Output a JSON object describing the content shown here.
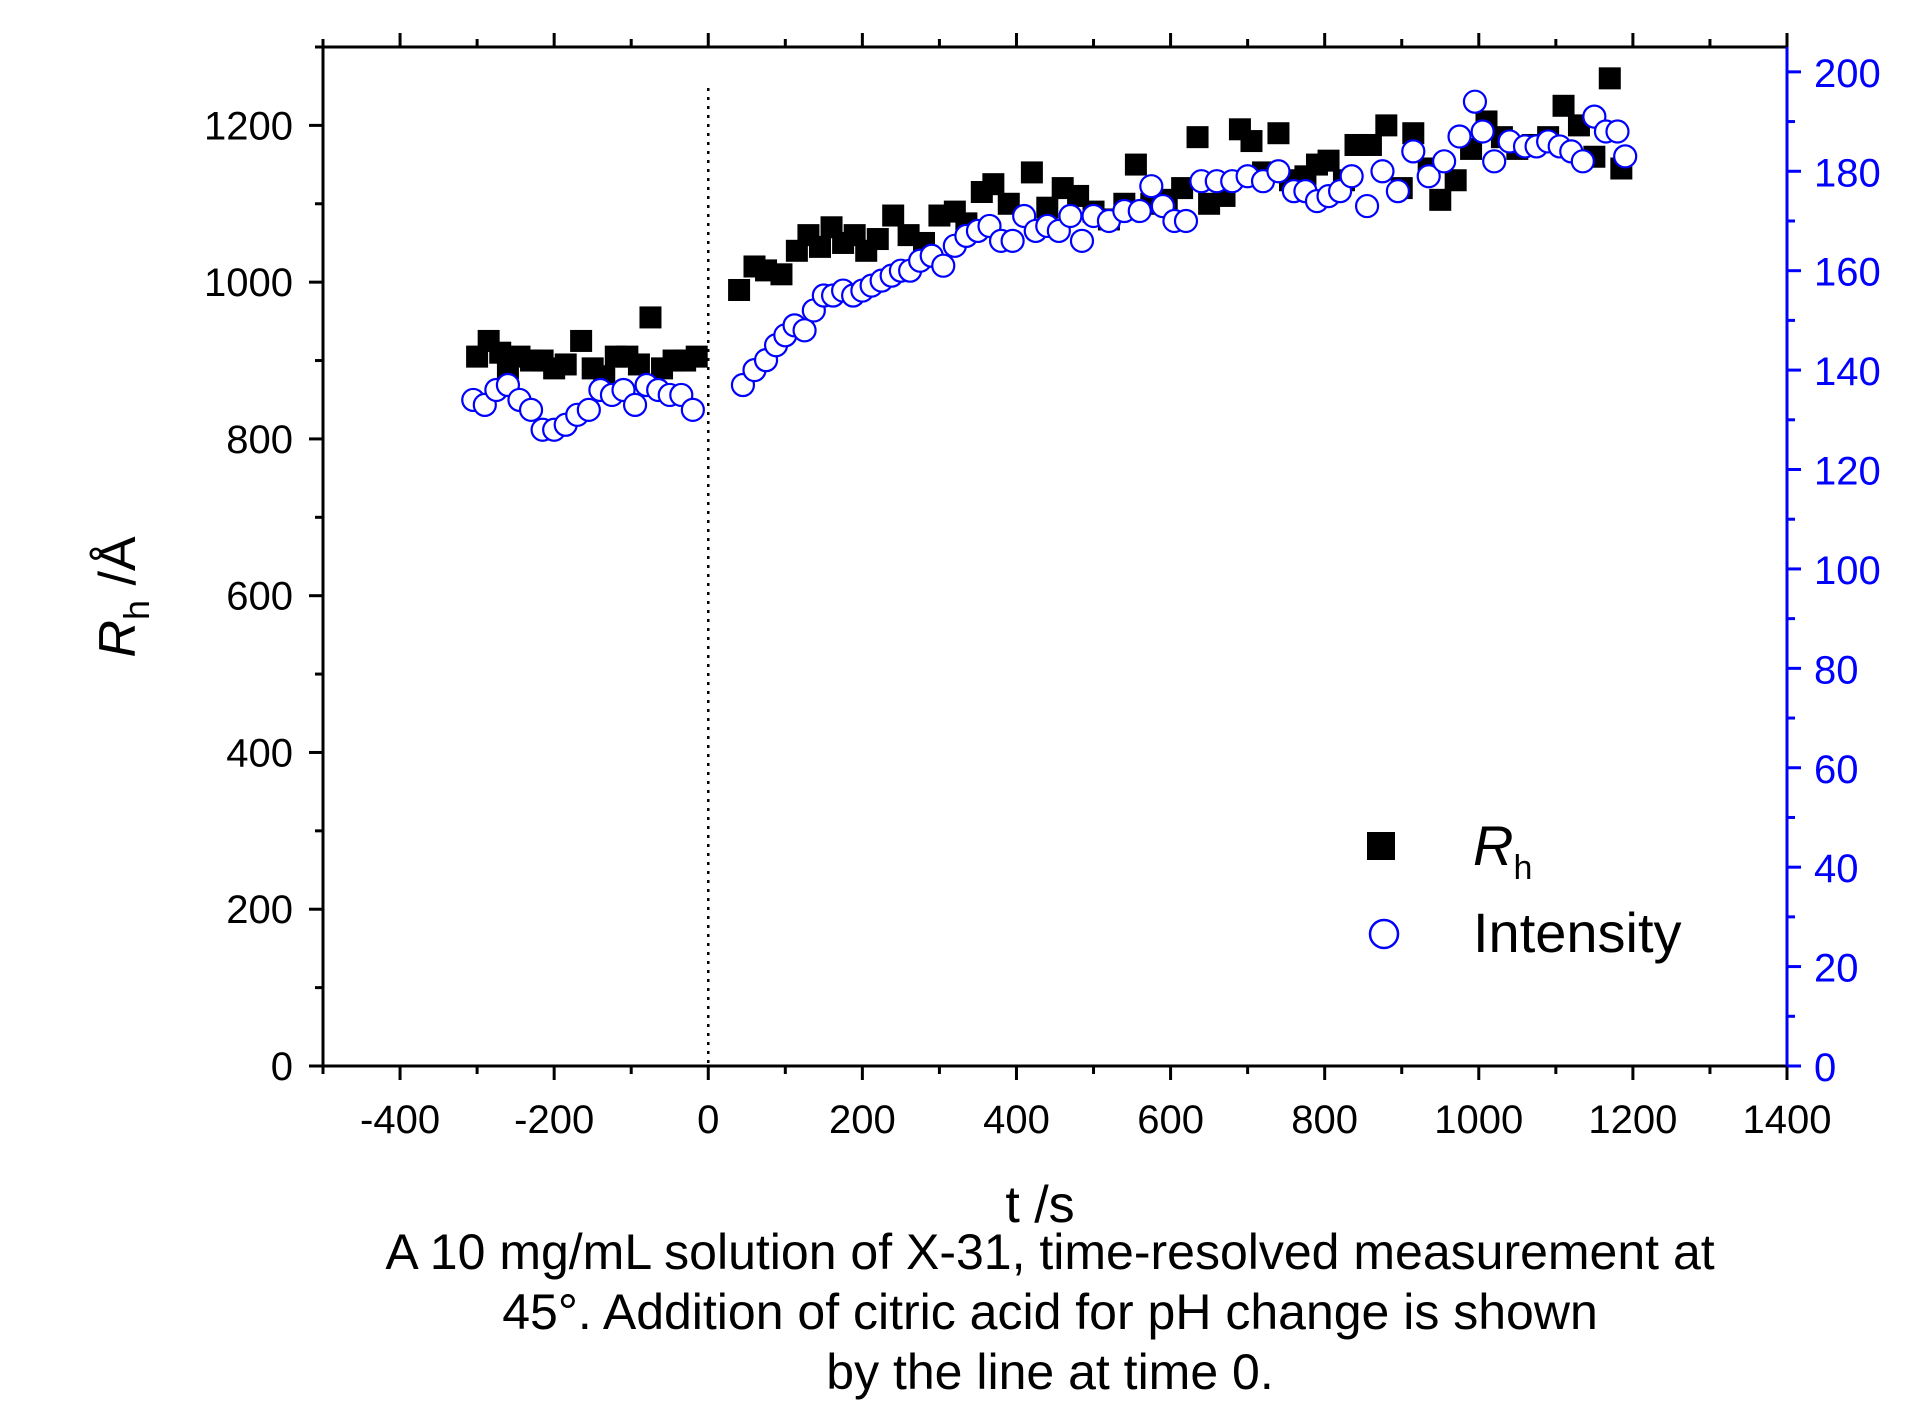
{
  "chart_data": {
    "type": "scatter",
    "xlabel": "t /s",
    "ylabel_main": "R",
    "ylabel_sub": "h",
    "ylabel_unit": " /Å",
    "xlim": [
      -500,
      1400
    ],
    "ylim": [
      0,
      1300
    ],
    "y2lim": [
      0,
      205
    ],
    "x_ticks": [
      "-400",
      "-200",
      "0",
      "200",
      "400",
      "600",
      "800",
      "1000",
      "1200",
      "1400"
    ],
    "y_ticks": [
      "0",
      "200",
      "400",
      "600",
      "800",
      "1000",
      "1200"
    ],
    "y2_ticks": [
      "0",
      "20",
      "40",
      "60",
      "80",
      "100",
      "120",
      "140",
      "160",
      "180",
      "200"
    ],
    "vline_x": 0,
    "colors": {
      "rh": "#000000",
      "intensity": "#0000ff"
    },
    "legend_placement": "bottom-right",
    "series": [
      {
        "name": "R",
        "name_sub": "h",
        "axis": "left",
        "marker": "filled-square",
        "x": [
          -300,
          -285,
          -270,
          -260,
          -245,
          -230,
          -215,
          -200,
          -185,
          -165,
          -150,
          -135,
          -120,
          -105,
          -90,
          -75,
          -60,
          -45,
          -30,
          -15,
          40,
          60,
          75,
          95,
          115,
          130,
          145,
          160,
          175,
          190,
          205,
          220,
          240,
          260,
          280,
          300,
          320,
          335,
          355,
          370,
          390,
          420,
          440,
          460,
          480,
          500,
          520,
          540,
          555,
          575,
          595,
          615,
          635,
          650,
          670,
          690,
          705,
          720,
          740,
          755,
          775,
          790,
          805,
          825,
          840,
          860,
          880,
          900,
          915,
          935,
          950,
          970,
          990,
          1010,
          1030,
          1050,
          1070,
          1090,
          1110,
          1130,
          1150,
          1170,
          1185
        ],
        "y": [
          905,
          925,
          910,
          890,
          905,
          900,
          900,
          890,
          895,
          925,
          890,
          880,
          905,
          905,
          895,
          955,
          890,
          900,
          900,
          905,
          990,
          1020,
          1015,
          1010,
          1040,
          1060,
          1045,
          1070,
          1050,
          1060,
          1040,
          1055,
          1085,
          1060,
          1050,
          1085,
          1090,
          1075,
          1115,
          1125,
          1100,
          1140,
          1095,
          1120,
          1110,
          1090,
          1080,
          1100,
          1150,
          1100,
          1105,
          1120,
          1185,
          1100,
          1110,
          1195,
          1180,
          1140,
          1190,
          1130,
          1135,
          1150,
          1155,
          1130,
          1175,
          1175,
          1200,
          1120,
          1190,
          1145,
          1105,
          1130,
          1170,
          1205,
          1185,
          1170,
          1175,
          1185,
          1225,
          1200,
          1160,
          1260,
          1145
        ]
      },
      {
        "name": "Intensity",
        "axis": "right",
        "marker": "open-circle",
        "x": [
          -305,
          -290,
          -275,
          -260,
          -245,
          -230,
          -215,
          -200,
          -185,
          -170,
          -155,
          -140,
          -125,
          -110,
          -95,
          -80,
          -65,
          -50,
          -35,
          -20,
          45,
          60,
          75,
          88,
          100,
          112,
          125,
          137,
          150,
          162,
          175,
          188,
          200,
          212,
          225,
          238,
          250,
          262,
          275,
          290,
          305,
          320,
          335,
          350,
          365,
          380,
          395,
          410,
          425,
          440,
          455,
          470,
          485,
          500,
          520,
          540,
          560,
          575,
          590,
          605,
          620,
          640,
          660,
          680,
          700,
          720,
          740,
          760,
          775,
          790,
          805,
          820,
          835,
          855,
          875,
          895,
          915,
          935,
          955,
          975,
          995,
          1005,
          1020,
          1040,
          1060,
          1075,
          1090,
          1105,
          1120,
          1135,
          1150,
          1165,
          1180,
          1190
        ],
        "y": [
          134,
          133,
          136,
          137,
          134,
          132,
          128,
          128,
          129,
          131,
          132,
          136,
          135,
          136,
          133,
          137,
          136,
          135,
          135,
          132,
          137,
          140,
          142,
          145,
          147,
          149,
          148,
          152,
          155,
          155,
          156,
          155,
          156,
          157,
          158,
          159,
          160,
          160,
          162,
          163,
          161,
          165,
          167,
          168,
          169,
          166,
          166,
          171,
          168,
          169,
          168,
          171,
          166,
          171,
          170,
          172,
          172,
          177,
          173,
          170,
          170,
          178,
          178,
          178,
          179,
          178,
          180,
          176,
          176,
          174,
          175,
          176,
          179,
          173,
          180,
          176,
          184,
          179,
          182,
          187,
          194,
          188,
          182,
          186,
          185,
          185,
          186,
          185,
          184,
          182,
          191,
          188,
          188,
          183
        ]
      }
    ]
  },
  "caption": {
    "line1": "A 10 mg/mL solution of X-31, time-resolved measurement at",
    "line2": "45°.  Addition of citric acid for pH change is shown",
    "line3": "by the line at time 0."
  }
}
